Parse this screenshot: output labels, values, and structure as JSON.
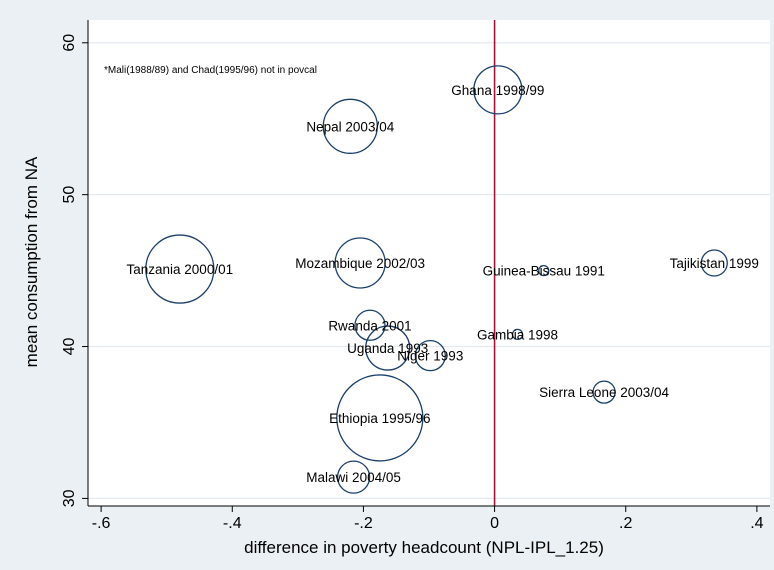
{
  "chart_data": {
    "type": "scatter",
    "title": "",
    "xlabel": "difference in poverty headcount (NPL-IPL_1.25)",
    "ylabel": "mean consumption from NA",
    "note": "*Mali(1988/89) and Chad(1995/96) not in povcal",
    "xlim": [
      -0.62,
      0.42
    ],
    "ylim": [
      29.5,
      61.5
    ],
    "xticks": [
      -0.6,
      -0.4,
      -0.2,
      0,
      0.2,
      0.4
    ],
    "xtick_labels": [
      "-.6",
      "-.4",
      "-.2",
      "0",
      ".2",
      ".4"
    ],
    "yticks": [
      30,
      40,
      50,
      60
    ],
    "ytick_labels": [
      "30",
      "40",
      "50",
      "60"
    ],
    "grid": true,
    "reference_line_x": 0,
    "colors": {
      "marker": "#1a3f6b",
      "refline": "#a0173a",
      "plot_bg": "#ffffff",
      "outer_bg": "#eaf0f4",
      "grid": "#e3eaef"
    },
    "points": [
      {
        "label": "Ghana 1998/99",
        "x": 0.005,
        "y": 56.9,
        "r": 24
      },
      {
        "label": "Nepal 2003/04",
        "x": -0.22,
        "y": 54.5,
        "r": 27
      },
      {
        "label": "Tanzania 2000/01",
        "x": -0.48,
        "y": 45.1,
        "r": 34
      },
      {
        "label": "Mozambique 2002/03",
        "x": -0.205,
        "y": 45.5,
        "r": 25
      },
      {
        "label": "Guinea-Bissau 1991",
        "x": 0.075,
        "y": 45.0,
        "r": 5
      },
      {
        "label": "Tajikistan 1999",
        "x": 0.335,
        "y": 45.5,
        "r": 13
      },
      {
        "label": "Rwanda 2001",
        "x": -0.19,
        "y": 41.4,
        "r": 15
      },
      {
        "label": "Gambia 1998",
        "x": 0.035,
        "y": 40.8,
        "r": 5
      },
      {
        "label": "Uganda 1993",
        "x": -0.163,
        "y": 39.9,
        "r": 22
      },
      {
        "label": "Niger 1993",
        "x": -0.098,
        "y": 39.4,
        "r": 15
      },
      {
        "label": "Sierra Leone 2003/04",
        "x": 0.167,
        "y": 37.0,
        "r": 11
      },
      {
        "label": "Ethiopia 1995/96",
        "x": -0.175,
        "y": 35.3,
        "r": 43
      },
      {
        "label": "Malawi 2004/05",
        "x": -0.215,
        "y": 31.4,
        "r": 16
      }
    ]
  }
}
